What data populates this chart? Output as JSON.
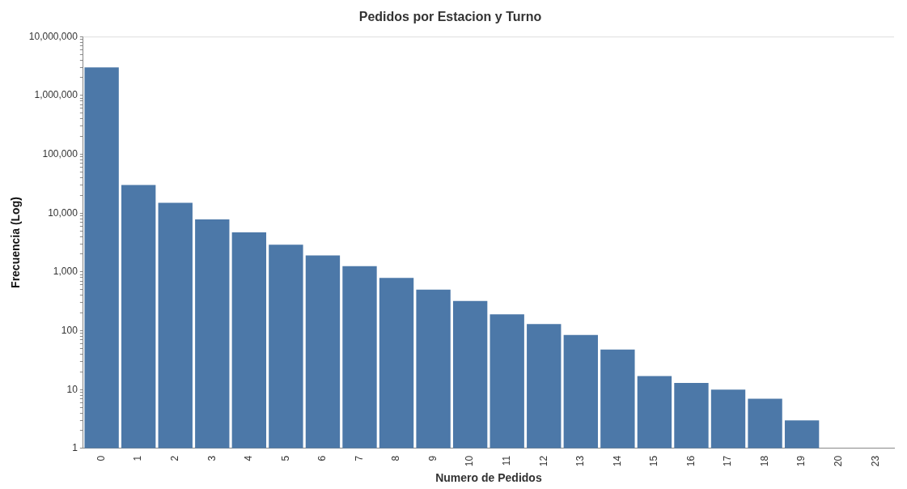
{
  "chart_data": {
    "type": "bar",
    "title": "Pedidos por Estacion y Turno",
    "xlabel": "Numero de Pedidos",
    "ylabel": "Frecuencia (Log)",
    "categories": [
      "0",
      "1",
      "2",
      "3",
      "4",
      "5",
      "6",
      "7",
      "8",
      "9",
      "10",
      "11",
      "12",
      "13",
      "14",
      "15",
      "16",
      "17",
      "18",
      "19",
      "20",
      "23"
    ],
    "values": [
      3000000,
      30000,
      15000,
      7800,
      4700,
      2900,
      1900,
      1250,
      790,
      500,
      320,
      190,
      130,
      85,
      48,
      17,
      13,
      10,
      7,
      3,
      1,
      1
    ],
    "color": "#4c78a8",
    "log": "y",
    "grid": false,
    "ylim": [
      1,
      10000000
    ],
    "yticks": [
      {
        "value": 1,
        "label": "1"
      },
      {
        "value": 2,
        "label": null
      },
      {
        "value": 3,
        "label": null
      },
      {
        "value": 4,
        "label": null
      },
      {
        "value": 5,
        "label": null
      },
      {
        "value": 6,
        "label": null
      },
      {
        "value": 7,
        "label": null
      },
      {
        "value": 8,
        "label": null
      },
      {
        "value": 9,
        "label": null
      },
      {
        "value": 10,
        "label": "10"
      },
      {
        "value": 20,
        "label": null
      },
      {
        "value": 30,
        "label": null
      },
      {
        "value": 40,
        "label": null
      },
      {
        "value": 50,
        "label": null
      },
      {
        "value": 60,
        "label": null
      },
      {
        "value": 70,
        "label": null
      },
      {
        "value": 80,
        "label": null
      },
      {
        "value": 90,
        "label": null
      },
      {
        "value": 100,
        "label": "100"
      },
      {
        "value": 200,
        "label": null
      },
      {
        "value": 300,
        "label": null
      },
      {
        "value": 400,
        "label": null
      },
      {
        "value": 500,
        "label": null
      },
      {
        "value": 600,
        "label": null
      },
      {
        "value": 700,
        "label": null
      },
      {
        "value": 800,
        "label": null
      },
      {
        "value": 900,
        "label": null
      },
      {
        "value": 1000,
        "label": "1,000"
      },
      {
        "value": 2000,
        "label": null
      },
      {
        "value": 3000,
        "label": null
      },
      {
        "value": 4000,
        "label": null
      },
      {
        "value": 5000,
        "label": null
      },
      {
        "value": 6000,
        "label": null
      },
      {
        "value": 7000,
        "label": null
      },
      {
        "value": 8000,
        "label": null
      },
      {
        "value": 9000,
        "label": null
      },
      {
        "value": 10000,
        "label": "10,000"
      },
      {
        "value": 20000,
        "label": null
      },
      {
        "value": 30000,
        "label": null
      },
      {
        "value": 40000,
        "label": null
      },
      {
        "value": 50000,
        "label": null
      },
      {
        "value": 60000,
        "label": null
      },
      {
        "value": 70000,
        "label": null
      },
      {
        "value": 80000,
        "label": null
      },
      {
        "value": 90000,
        "label": null
      },
      {
        "value": 100000,
        "label": "100,000"
      },
      {
        "value": 200000,
        "label": null
      },
      {
        "value": 300000,
        "label": null
      },
      {
        "value": 400000,
        "label": null
      },
      {
        "value": 500000,
        "label": null
      },
      {
        "value": 600000,
        "label": null
      },
      {
        "value": 700000,
        "label": null
      },
      {
        "value": 800000,
        "label": null
      },
      {
        "value": 900000,
        "label": null
      },
      {
        "value": 1000000,
        "label": "1,000,000"
      },
      {
        "value": 2000000,
        "label": null
      },
      {
        "value": 3000000,
        "label": null
      },
      {
        "value": 4000000,
        "label": null
      },
      {
        "value": 5000000,
        "label": null
      },
      {
        "value": 6000000,
        "label": null
      },
      {
        "value": 7000000,
        "label": null
      },
      {
        "value": 8000000,
        "label": null
      },
      {
        "value": 9000000,
        "label": null
      },
      {
        "value": 10000000,
        "label": "10,000,000"
      }
    ],
    "legend": false
  }
}
